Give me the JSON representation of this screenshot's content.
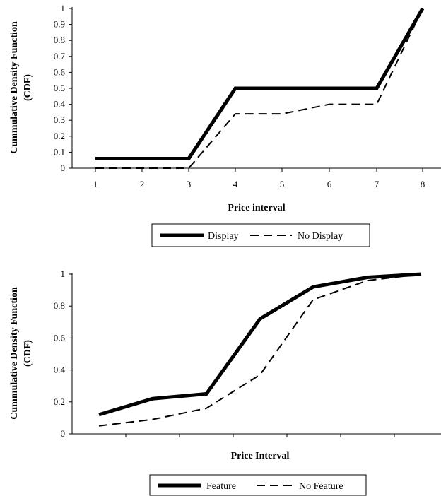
{
  "chart_data": [
    {
      "type": "line",
      "x": [
        1,
        2,
        3,
        4,
        5,
        6,
        7,
        8
      ],
      "categories": [
        "1",
        "2",
        "3",
        "4",
        "5",
        "6",
        "7",
        "8"
      ],
      "series": [
        {
          "name": "Display",
          "values": [
            0.06,
            0.06,
            0.06,
            0.5,
            0.5,
            0.5,
            0.5,
            1.0
          ],
          "style": "solid"
        },
        {
          "name": "No Display",
          "values": [
            0.0,
            0.0,
            0.0,
            0.34,
            0.34,
            0.4,
            0.4,
            1.0
          ],
          "style": "dashed"
        }
      ],
      "xlabel": "Price interval",
      "ylabel_line1": "Cummulative Density Function",
      "ylabel_line2": "(CDF)",
      "ylim": [
        0,
        1
      ],
      "yticks": [
        "0",
        "0.1",
        "0.2",
        "0.3",
        "0.4",
        "0.5",
        "0.6",
        "0.7",
        "0.8",
        "0.9",
        "1"
      ],
      "legend_placement": "bottom",
      "grid": false
    },
    {
      "type": "line",
      "x": [
        1,
        2,
        3,
        4,
        5,
        6,
        7
      ],
      "categories": [],
      "series": [
        {
          "name": "Feature",
          "values": [
            0.12,
            0.22,
            0.25,
            0.72,
            0.92,
            0.98,
            1.0
          ],
          "style": "solid"
        },
        {
          "name": "No Feature",
          "values": [
            0.05,
            0.09,
            0.16,
            0.37,
            0.84,
            0.96,
            1.0
          ],
          "style": "dashed"
        }
      ],
      "xlabel": "Price Interval",
      "ylabel_line1": "Cummulative Density Function",
      "ylabel_line2": "(CDF)",
      "ylim": [
        0,
        1
      ],
      "yticks": [
        "0",
        "0.2",
        "0.4",
        "0.6",
        "0.8",
        "1"
      ],
      "legend_placement": "bottom",
      "grid": false
    }
  ]
}
